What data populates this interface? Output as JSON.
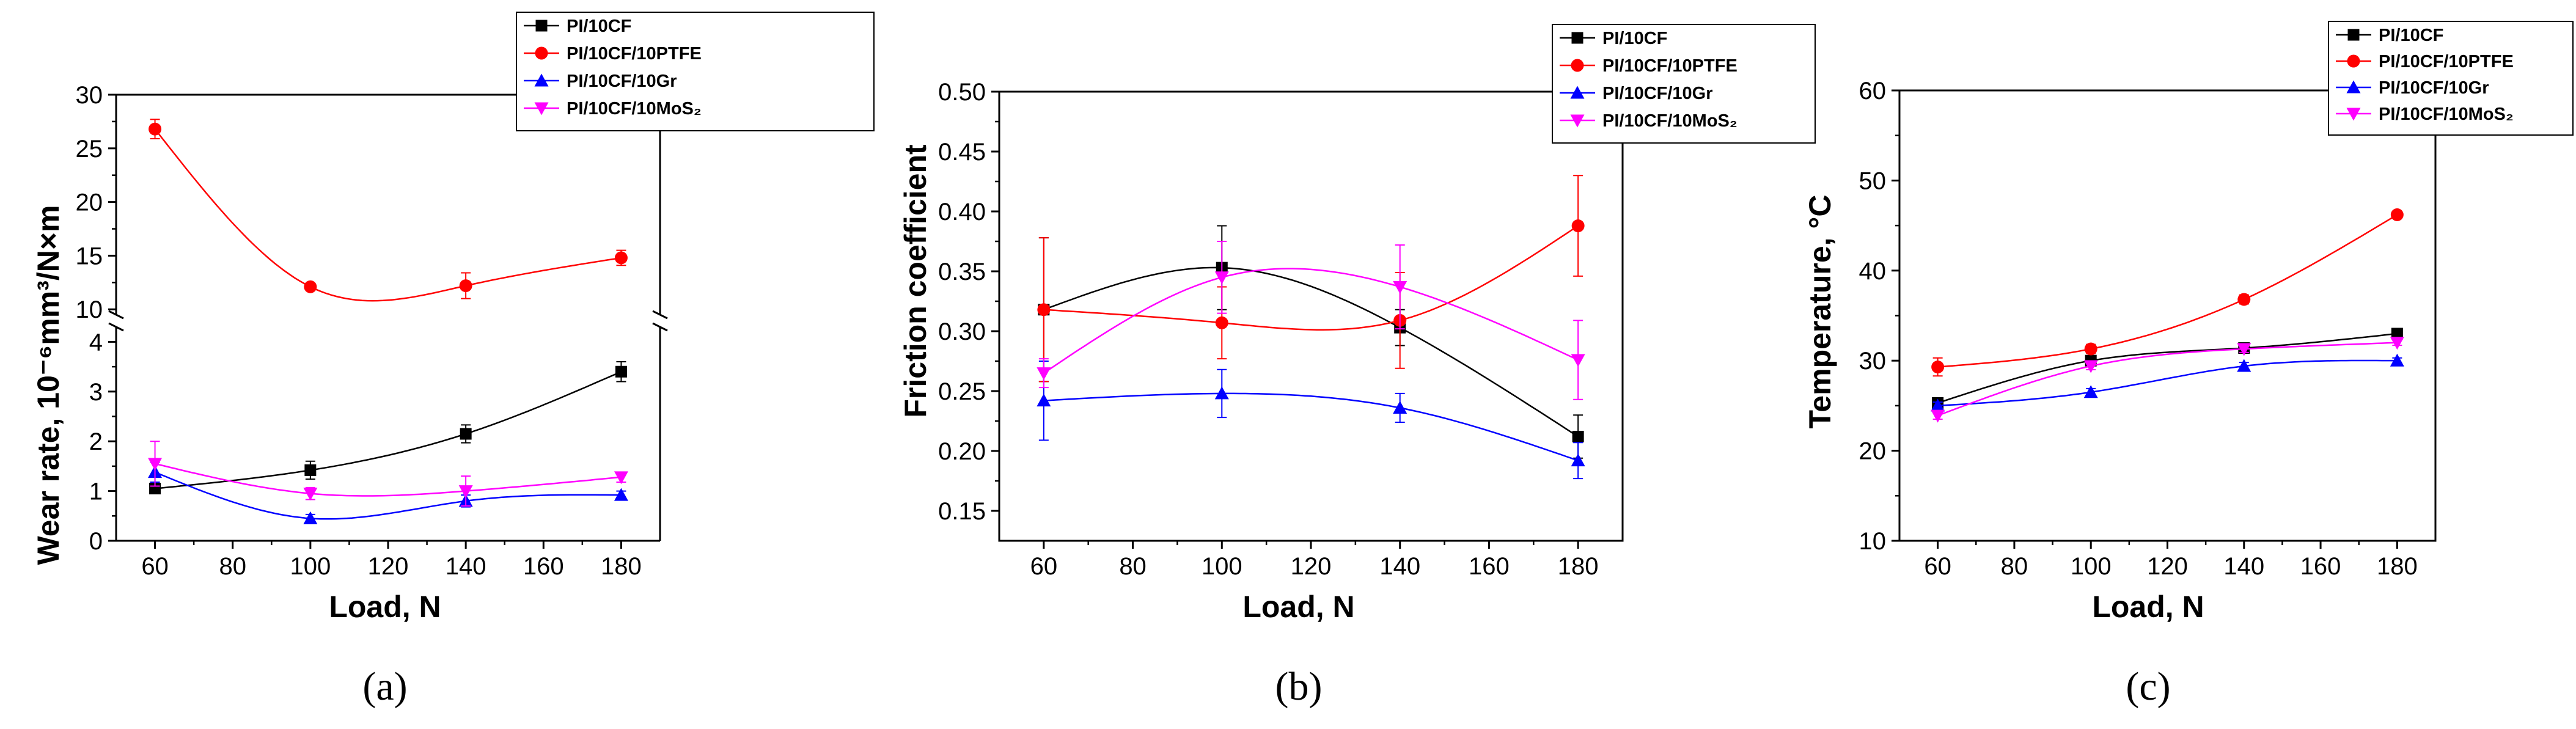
{
  "colors": {
    "black": "#000000",
    "red": "#ff0000",
    "blue": "#0000ff",
    "magenta": "#ff00ff"
  },
  "chart_data": [
    {
      "type": "line",
      "panel": "(a)",
      "xlabel": "Load, N",
      "ylabel": "Wear rate, 10⁻⁶mm³/N×m",
      "x": [
        60,
        100,
        140,
        180
      ],
      "xlim": [
        50,
        190
      ],
      "xticks": [
        60,
        80,
        100,
        120,
        140,
        160,
        180
      ],
      "ylim_lower": [
        0,
        4.3
      ],
      "ylim_upper": [
        9.5,
        30
      ],
      "yticks_lower": [
        0,
        1,
        2,
        3,
        4
      ],
      "yticks_upper": [
        10,
        15,
        20,
        25,
        30
      ],
      "axis_break": true,
      "legend_position": "top-right",
      "series": [
        {
          "name": "PI/10CF",
          "color": "#000000",
          "marker": "square",
          "values": [
            1.05,
            1.42,
            2.15,
            3.4
          ],
          "errors": [
            0.1,
            0.18,
            0.18,
            0.2
          ]
        },
        {
          "name": "PI/10CF/10PTFE",
          "color": "#ff0000",
          "marker": "circle",
          "values": [
            26.8,
            12.1,
            12.2,
            14.8
          ],
          "errors": [
            0.9,
            0.3,
            1.2,
            0.7
          ]
        },
        {
          "name": "PI/10CF/10Gr",
          "color": "#0000ff",
          "marker": "triangle-up",
          "values": [
            1.38,
            0.45,
            0.8,
            0.92
          ],
          "errors": [
            0.2,
            0.08,
            0.12,
            0.08
          ]
        },
        {
          "name": "PI/10CF/10MoS₂",
          "color": "#ff00ff",
          "marker": "triangle-down",
          "values": [
            1.55,
            0.95,
            1.0,
            1.28
          ],
          "errors": [
            0.45,
            0.12,
            0.3,
            0.1
          ]
        }
      ]
    },
    {
      "type": "line",
      "panel": "(b)",
      "xlabel": "Load, N",
      "ylabel": "Friction coefficient",
      "x": [
        60,
        100,
        140,
        180
      ],
      "xlim": [
        50,
        190
      ],
      "xticks": [
        60,
        80,
        100,
        120,
        140,
        160,
        180
      ],
      "ylim": [
        0.125,
        0.5
      ],
      "yticks": [
        0.15,
        0.2,
        0.25,
        0.3,
        0.35,
        0.4,
        0.45,
        0.5
      ],
      "legend_position": "top-right",
      "series": [
        {
          "name": "PI/10CF",
          "color": "#000000",
          "marker": "square",
          "values": [
            0.318,
            0.353,
            0.303,
            0.212
          ],
          "errors": [
            0.06,
            0.035,
            0.015,
            0.018
          ]
        },
        {
          "name": "PI/10CF/10PTFE",
          "color": "#ff0000",
          "marker": "circle",
          "values": [
            0.318,
            0.307,
            0.309,
            0.388
          ],
          "errors": [
            0.06,
            0.03,
            0.04,
            0.042
          ]
        },
        {
          "name": "PI/10CF/10Gr",
          "color": "#0000ff",
          "marker": "triangle-up",
          "values": [
            0.242,
            0.248,
            0.236,
            0.192
          ],
          "errors": [
            0.033,
            0.02,
            0.012,
            0.015
          ]
        },
        {
          "name": "PI/10CF/10MoS₂",
          "color": "#ff00ff",
          "marker": "triangle-down",
          "values": [
            0.265,
            0.345,
            0.337,
            0.276
          ],
          "errors": [
            0.012,
            0.03,
            0.035,
            0.033
          ]
        }
      ]
    },
    {
      "type": "line",
      "panel": "(c)",
      "xlabel": "Load, N",
      "ylabel": "Temperature, °C",
      "x": [
        60,
        100,
        140,
        180
      ],
      "xlim": [
        50,
        190
      ],
      "xticks": [
        60,
        80,
        100,
        120,
        140,
        160,
        180
      ],
      "ylim": [
        10,
        60
      ],
      "yticks": [
        10,
        20,
        30,
        40,
        50,
        60
      ],
      "legend_position": "top-right",
      "series": [
        {
          "name": "PI/10CF",
          "color": "#000000",
          "marker": "square",
          "values": [
            25.3,
            30.0,
            31.4,
            33.0
          ],
          "errors": [
            0.4,
            0.4,
            0.4,
            0.3
          ]
        },
        {
          "name": "PI/10CF/10PTFE",
          "color": "#ff0000",
          "marker": "circle",
          "values": [
            29.3,
            31.3,
            36.8,
            46.2
          ],
          "errors": [
            1.0,
            0.5,
            0.5,
            0.3
          ]
        },
        {
          "name": "PI/10CF/10Gr",
          "color": "#0000ff",
          "marker": "triangle-up",
          "values": [
            25.0,
            26.5,
            29.4,
            30.0
          ],
          "errors": [
            0.4,
            0.4,
            0.4,
            0.3
          ]
        },
        {
          "name": "PI/10CF/10MoS₂",
          "color": "#ff00ff",
          "marker": "triangle-down",
          "values": [
            23.9,
            29.4,
            31.3,
            32.0
          ],
          "errors": [
            0.4,
            0.4,
            0.4,
            0.3
          ]
        }
      ]
    }
  ]
}
